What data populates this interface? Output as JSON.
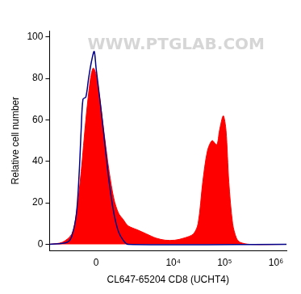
{
  "chart_data": {
    "type": "line",
    "x_label": "CL647-65204 CD8 (UCHT4)",
    "y_label": "Relative cell number",
    "annotations": [
      "WWW.PTGLAB.COM"
    ],
    "xlim": [
      -2500,
      1600000
    ],
    "xticks": [
      0,
      {
        "value": 10000,
        "label": "10⁴"
      },
      {
        "value": 100000,
        "label": "10⁵"
      },
      {
        "value": 1000000,
        "label": "10⁶"
      }
    ],
    "ylim": [
      -3,
      103
    ],
    "yticks": [
      0,
      20,
      40,
      60,
      80,
      100
    ],
    "grid": false,
    "series": [
      {
        "type": "area",
        "color": "#ff0000",
        "x": [
          -2500,
          -1360,
          -830,
          -630,
          -455,
          -300,
          -160,
          -80,
          0,
          107,
          244,
          392,
          558,
          748,
          971,
          1238,
          1947,
          3000,
          4600,
          7000,
          10700,
          16200,
          24700,
          30500,
          37600,
          46300,
          57200,
          70500,
          79700,
          94300,
          106500,
          121000,
          143500,
          170000,
          200000,
          305000,
          1600000
        ],
        "values": [
          0,
          1,
          5,
          15,
          35,
          60,
          80,
          85,
          82,
          70,
          52,
          35,
          22,
          15,
          12,
          9,
          7,
          5,
          3,
          2,
          2,
          3,
          5,
          10,
          30,
          45,
          50,
          48,
          55,
          62,
          55,
          30,
          10,
          3,
          1,
          0,
          0
        ]
      },
      {
        "type": "line",
        "color": "#00008b",
        "x": [
          -2500,
          -1073,
          -830,
          -630,
          -523,
          -455,
          -392,
          -300,
          -216,
          -133,
          -53,
          0,
          107,
          244,
          392,
          558,
          748,
          971,
          1238,
          1600000
        ],
        "values": [
          0,
          1,
          4,
          15,
          35,
          55,
          70,
          71,
          80,
          88,
          93,
          85,
          70,
          50,
          30,
          15,
          6,
          2,
          0,
          0
        ]
      }
    ]
  }
}
